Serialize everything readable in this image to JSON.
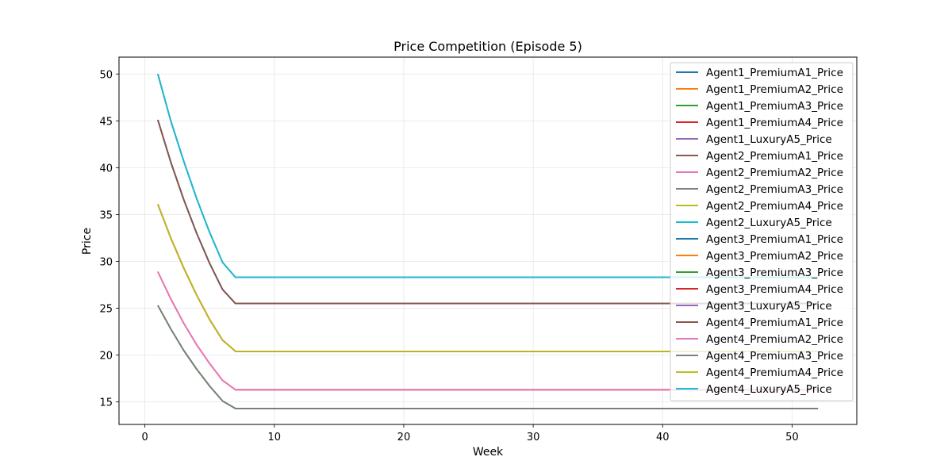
{
  "chart_data": {
    "type": "line",
    "title": "Price Competition (Episode 5)",
    "xlabel": "Week",
    "ylabel": "Price",
    "xlim": [
      -2,
      55
    ],
    "ylim": [
      12.6,
      51.8
    ],
    "xticks": [
      0,
      10,
      20,
      30,
      40,
      50
    ],
    "yticks": [
      15,
      20,
      25,
      30,
      35,
      40,
      45,
      50
    ],
    "grid": true,
    "legend_position": "upper-right",
    "x": [
      1,
      2,
      3,
      4,
      5,
      6,
      7,
      8,
      9,
      10,
      11,
      12,
      13,
      14,
      15,
      16,
      17,
      18,
      19,
      20,
      21,
      22,
      23,
      24,
      25,
      26,
      27,
      28,
      29,
      30,
      31,
      32,
      33,
      34,
      35,
      36,
      37,
      38,
      39,
      40,
      41,
      42,
      43,
      44,
      45,
      46,
      47,
      48,
      49,
      50,
      51,
      52
    ],
    "price_levels": {
      "PremiumA1": [
        45.1,
        40.6,
        36.6,
        33.0,
        29.8,
        27.0,
        25.5
      ],
      "PremiumA2": [
        28.9,
        26.0,
        23.4,
        21.1,
        19.1,
        17.3,
        16.3
      ],
      "PremiumA3": [
        25.3,
        22.8,
        20.5,
        18.5,
        16.7,
        15.1,
        14.3
      ],
      "PremiumA4": [
        36.1,
        32.5,
        29.3,
        26.4,
        23.8,
        21.6,
        20.4
      ],
      "LuxuryA5": [
        50.0,
        45.0,
        40.7,
        36.7,
        33.1,
        29.9,
        28.3
      ]
    },
    "series": [
      {
        "name": "Agent1_PremiumA1_Price",
        "product": "PremiumA1",
        "color": "#1f77b4"
      },
      {
        "name": "Agent1_PremiumA2_Price",
        "product": "PremiumA2",
        "color": "#ff7f0e"
      },
      {
        "name": "Agent1_PremiumA3_Price",
        "product": "PremiumA3",
        "color": "#2ca02c"
      },
      {
        "name": "Agent1_PremiumA4_Price",
        "product": "PremiumA4",
        "color": "#d62728"
      },
      {
        "name": "Agent1_LuxuryA5_Price",
        "product": "LuxuryA5",
        "color": "#9467bd"
      },
      {
        "name": "Agent2_PremiumA1_Price",
        "product": "PremiumA1",
        "color": "#8c564b"
      },
      {
        "name": "Agent2_PremiumA2_Price",
        "product": "PremiumA2",
        "color": "#e377c2"
      },
      {
        "name": "Agent2_PremiumA3_Price",
        "product": "PremiumA3",
        "color": "#7f7f7f"
      },
      {
        "name": "Agent2_PremiumA4_Price",
        "product": "PremiumA4",
        "color": "#bcbd22"
      },
      {
        "name": "Agent2_LuxuryA5_Price",
        "product": "LuxuryA5",
        "color": "#17becf"
      },
      {
        "name": "Agent3_PremiumA1_Price",
        "product": "PremiumA1",
        "color": "#1f77b4"
      },
      {
        "name": "Agent3_PremiumA2_Price",
        "product": "PremiumA2",
        "color": "#ff7f0e"
      },
      {
        "name": "Agent3_PremiumA3_Price",
        "product": "PremiumA3",
        "color": "#2ca02c"
      },
      {
        "name": "Agent3_PremiumA4_Price",
        "product": "PremiumA4",
        "color": "#d62728"
      },
      {
        "name": "Agent3_LuxuryA5_Price",
        "product": "LuxuryA5",
        "color": "#9467bd"
      },
      {
        "name": "Agent4_PremiumA1_Price",
        "product": "PremiumA1",
        "color": "#8c564b"
      },
      {
        "name": "Agent4_PremiumA2_Price",
        "product": "PremiumA2",
        "color": "#e377c2"
      },
      {
        "name": "Agent4_PremiumA3_Price",
        "product": "PremiumA3",
        "color": "#7f7f7f"
      },
      {
        "name": "Agent4_PremiumA4_Price",
        "product": "PremiumA4",
        "color": "#bcbd22"
      },
      {
        "name": "Agent4_LuxuryA5_Price",
        "product": "LuxuryA5",
        "color": "#17becf"
      }
    ]
  }
}
